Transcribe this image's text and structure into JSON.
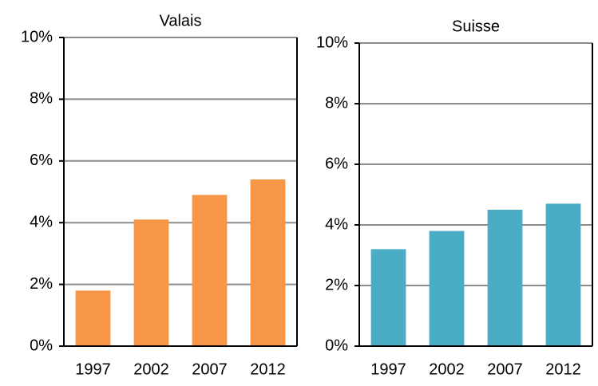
{
  "chart_data": [
    {
      "type": "bar",
      "title": "Valais",
      "categories": [
        "1997",
        "2002",
        "2007",
        "2012"
      ],
      "values": [
        1.8,
        4.1,
        4.9,
        5.4
      ],
      "color": "#f79646",
      "ylim": [
        0,
        10
      ],
      "yticks": [
        {
          "value": 0,
          "label": "0%"
        },
        {
          "value": 2,
          "label": "2%"
        },
        {
          "value": 4,
          "label": "4%"
        },
        {
          "value": 6,
          "label": "6%"
        },
        {
          "value": 8,
          "label": "8%"
        },
        {
          "value": 10,
          "label": "10%"
        }
      ],
      "grid": true
    },
    {
      "type": "bar",
      "title": "Suisse",
      "categories": [
        "1997",
        "2002",
        "2007",
        "2012"
      ],
      "values": [
        3.2,
        3.8,
        4.5,
        4.7
      ],
      "color": "#4bacc6",
      "ylim": [
        0,
        10
      ],
      "yticks": [
        {
          "value": 0,
          "label": "0%"
        },
        {
          "value": 2,
          "label": "2%"
        },
        {
          "value": 4,
          "label": "4%"
        },
        {
          "value": 6,
          "label": "6%"
        },
        {
          "value": 8,
          "label": "8%"
        },
        {
          "value": 10,
          "label": "10%"
        }
      ],
      "grid": true
    }
  ]
}
